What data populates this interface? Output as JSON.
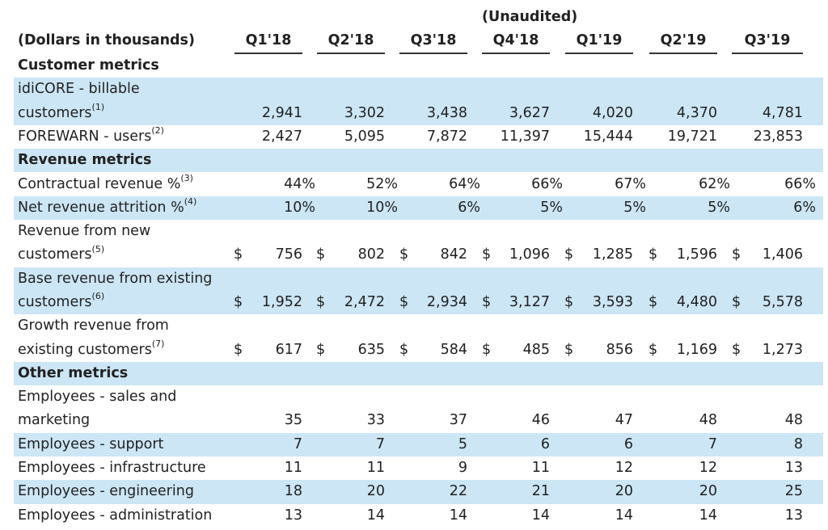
{
  "unaudited": "(Unaudited)",
  "unit_header": "(Dollars in thousands)",
  "quarters": [
    "Q1'18",
    "Q2'18",
    "Q3'18",
    "Q4'18",
    "Q1'19",
    "Q2'19",
    "Q3'19"
  ],
  "rows": [
    {
      "type": "section",
      "lines": [
        "Customer metrics"
      ],
      "shaded": false
    },
    {
      "type": "data",
      "lines": [
        "idiCORE - billable",
        "customers"
      ],
      "fn": "(1)",
      "shaded": true,
      "values": [
        "2,941",
        "3,302",
        "3,438",
        "3,627",
        "4,020",
        "4,370",
        "4,781"
      ]
    },
    {
      "type": "data",
      "lines": [
        "FOREWARN - users"
      ],
      "fn": "(2)",
      "shaded": false,
      "values": [
        "2,427",
        "5,095",
        "7,872",
        "11,397",
        "15,444",
        "19,721",
        "23,853"
      ]
    },
    {
      "type": "section",
      "lines": [
        "Revenue metrics"
      ],
      "shaded": true
    },
    {
      "type": "pct",
      "lines": [
        "Contractual revenue %"
      ],
      "fn": "(3)",
      "shaded": false,
      "values": [
        "44%",
        "52%",
        "64%",
        "66%",
        "67%",
        "62%",
        "66%"
      ]
    },
    {
      "type": "pct",
      "lines": [
        "Net revenue attrition %"
      ],
      "fn": "(4)",
      "shaded": true,
      "values": [
        "10%",
        "10%",
        "6%",
        "5%",
        "5%",
        "5%",
        "6%"
      ]
    },
    {
      "type": "money",
      "lines": [
        "Revenue from new",
        "customers"
      ],
      "fn": "(5)",
      "shaded": false,
      "values": [
        "756",
        "802",
        "842",
        "1,096",
        "1,285",
        "1,596",
        "1,406"
      ]
    },
    {
      "type": "money",
      "lines": [
        "Base revenue from existing",
        "customers"
      ],
      "fn": "(6)",
      "shaded": true,
      "values": [
        "1,952",
        "2,472",
        "2,934",
        "3,127",
        "3,593",
        "4,480",
        "5,578"
      ]
    },
    {
      "type": "money",
      "lines": [
        "Growth revenue from",
        "existing customers"
      ],
      "fn": "(7)",
      "shaded": false,
      "values": [
        "617",
        "635",
        "584",
        "485",
        "856",
        "1,169",
        "1,273"
      ]
    },
    {
      "type": "section",
      "lines": [
        "Other metrics"
      ],
      "shaded": true
    },
    {
      "type": "data",
      "lines": [
        "Employees - sales and",
        "marketing"
      ],
      "fn": "",
      "shaded": false,
      "values": [
        "35",
        "33",
        "37",
        "46",
        "47",
        "48",
        "48"
      ]
    },
    {
      "type": "data",
      "lines": [
        "Employees - support"
      ],
      "fn": "",
      "shaded": true,
      "values": [
        "7",
        "7",
        "5",
        "6",
        "6",
        "7",
        "8"
      ]
    },
    {
      "type": "data",
      "lines": [
        "Employees - infrastructure"
      ],
      "fn": "",
      "shaded": false,
      "values": [
        "11",
        "11",
        "9",
        "11",
        "12",
        "12",
        "13"
      ]
    },
    {
      "type": "data",
      "lines": [
        "Employees - engineering"
      ],
      "fn": "",
      "shaded": true,
      "values": [
        "18",
        "20",
        "22",
        "21",
        "20",
        "20",
        "25"
      ]
    },
    {
      "type": "data",
      "lines": [
        "Employees - administration"
      ],
      "fn": "",
      "shaded": false,
      "values": [
        "13",
        "14",
        "14",
        "14",
        "14",
        "14",
        "13"
      ]
    }
  ],
  "currency_symbol": "$"
}
